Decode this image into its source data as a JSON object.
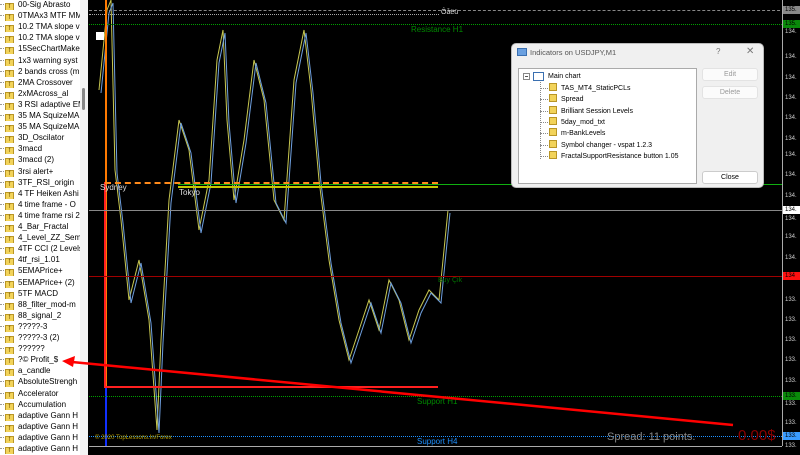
{
  "navigator": {
    "items": [
      "00-Sig Abrasto",
      "0TMAx3 MTF MM",
      "10.2 TMA slope v",
      "10.2 TMA slope v",
      "15SecChartMake",
      "1x3 warning syst",
      "2 bands cross (m",
      "2MA Crossover",
      "2xMAcross_al",
      "3 RSI adaptive EM",
      "35 MA SquizeMA",
      "35 MA SquizeMA",
      "3D_Oscilator",
      "3macd",
      "3macd (2)",
      "3rsi alert+",
      "3TF_RSI_origin",
      "4 TF Heiken Ashi",
      "4 time frame - O",
      "4 time frame rsi 2",
      "4_Bar_Fractal",
      "4_Level_ZZ_Sema",
      "4TF CCI (2 Levels",
      "4tf_rsi_1.01",
      "5EMAPrice+",
      "5EMAPrice+ (2)",
      "5TF MACD",
      "88_filter_mod-m",
      "88_signal_2",
      "?????-3",
      "?????-3 (2)",
      "??????",
      "?© Profit_$",
      "a_candle",
      "AbsoluteStrengh",
      "Accelerator",
      "Accumulation",
      "adaptive Gann H",
      "adaptive Gann H",
      "adaptive Gann H",
      "adaptive Gann H"
    ]
  },
  "chart": {
    "level_top_label": "Ôåëü",
    "resistance_h1": "Resistance H1",
    "session_sydney": "Sydney",
    "session_tokyo": "Tokyo",
    "buy_label": "Buy Çik",
    "support_h1": "Support H1",
    "support_h4": "Support H4",
    "copyright": "© 2020 TopLessons.In/Forex",
    "spread": "Spread: 11 points.",
    "profit": "0.00$",
    "price_labels": [
      "134.",
      "134.",
      "134.",
      "134.",
      "134.",
      "134.",
      "134.",
      "134.",
      "134.",
      "134.",
      "134.",
      "134.",
      "133.",
      "133.",
      "133.",
      "133.",
      "133.",
      "133.",
      "133.",
      "133."
    ],
    "price_boxes": {
      "top": "135.",
      "resistance": "135.",
      "current": "134.",
      "buy": "134",
      "support_h1": "133.",
      "support_h4": "133."
    },
    "colors": {
      "resistance": "#00a000",
      "buy": "#c00000",
      "support_h4": "#1e90ff",
      "profit": "#8b0000",
      "arrow": "#ff0000"
    }
  },
  "dialog": {
    "title": "Indicators on USDJPY,M1",
    "help": "?",
    "close_x": "✕",
    "root": "Main chart",
    "indicators": [
      "TAS_MT4_StaticPCLs",
      "Spread",
      "Brilliant Session Levels",
      "5day_mod_txt",
      "m-BankLevels",
      "Symbol changer - vspat 1.2.3",
      "FractalSupportResistance button 1.05"
    ],
    "edit": "Edit",
    "delete": "Delete",
    "close": "Close"
  }
}
